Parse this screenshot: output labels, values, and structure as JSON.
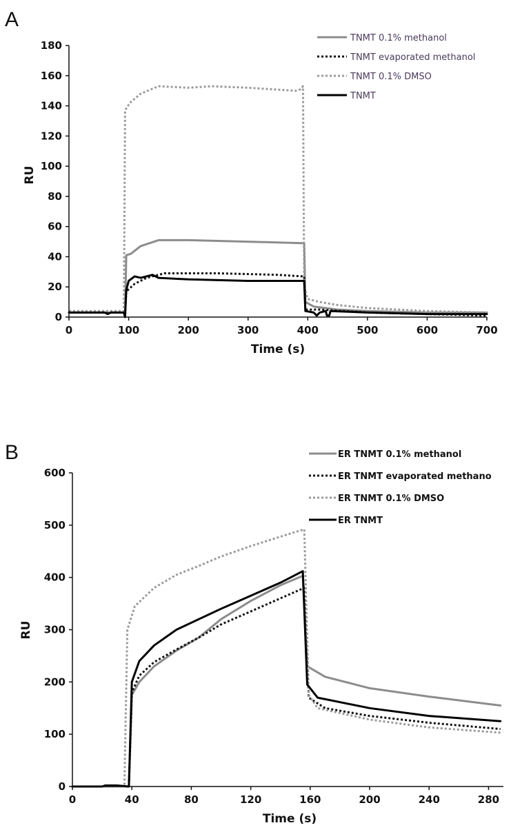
{
  "chart_data": [
    {
      "panel": "A",
      "type": "line",
      "xlabel": "Time (s)",
      "ylabel": "RU",
      "xlim": [
        0,
        700
      ],
      "ylim": [
        0,
        180
      ],
      "xticks": [
        "0",
        "100",
        "200",
        "300",
        "400",
        "500",
        "600",
        "700"
      ],
      "yticks": [
        "0",
        "20",
        "40",
        "60",
        "80",
        "100",
        "120",
        "140",
        "160",
        "180"
      ],
      "grid": false,
      "legend_position": "top-right",
      "series": [
        {
          "name": "TNMT 0.1% methanol",
          "color": "#8c8c8c",
          "dash": "solid",
          "points": [
            [
              0,
              3
            ],
            [
              94,
              3
            ],
            [
              96,
              41
            ],
            [
              104,
              42
            ],
            [
              120,
              47
            ],
            [
              150,
              51
            ],
            [
              200,
              51
            ],
            [
              300,
              50
            ],
            [
              390,
              49
            ],
            [
              394,
              49
            ],
            [
              396,
              10
            ],
            [
              410,
              7
            ],
            [
              450,
              5
            ],
            [
              500,
              4
            ],
            [
              600,
              3
            ],
            [
              700,
              3
            ]
          ]
        },
        {
          "name": "TNMT evaporated methanol",
          "color": "#111111",
          "dash": "dotted",
          "points": [
            [
              0,
              3
            ],
            [
              94,
              3
            ],
            [
              96,
              17
            ],
            [
              110,
              22
            ],
            [
              130,
              26
            ],
            [
              160,
              29
            ],
            [
              250,
              29
            ],
            [
              350,
              28
            ],
            [
              390,
              27
            ],
            [
              394,
              27
            ],
            [
              396,
              5
            ],
            [
              420,
              5
            ],
            [
              500,
              3
            ],
            [
              600,
              2
            ],
            [
              700,
              1
            ]
          ]
        },
        {
          "name": "TNMT 0.1% DMSO",
          "color": "#9a9a9a",
          "dash": "dotted",
          "points": [
            [
              0,
              4
            ],
            [
              92,
              4
            ],
            [
              94,
              137
            ],
            [
              102,
              142
            ],
            [
              120,
              148
            ],
            [
              150,
              153
            ],
            [
              200,
              152
            ],
            [
              240,
              153
            ],
            [
              300,
              152
            ],
            [
              340,
              151
            ],
            [
              380,
              150
            ],
            [
              388,
              151
            ],
            [
              392,
              153
            ],
            [
              394,
              20
            ],
            [
              400,
              12
            ],
            [
              420,
              10
            ],
            [
              450,
              8
            ],
            [
              500,
              6
            ],
            [
              600,
              4
            ],
            [
              700,
              3
            ]
          ]
        },
        {
          "name": "TNMT",
          "color": "#000000",
          "dash": "solid",
          "points": [
            [
              0,
              3
            ],
            [
              60,
              3
            ],
            [
              65,
              2
            ],
            [
              70,
              3
            ],
            [
              92,
              3
            ],
            [
              94,
              0
            ],
            [
              96,
              18
            ],
            [
              100,
              24
            ],
            [
              110,
              27
            ],
            [
              120,
              26
            ],
            [
              130,
              27
            ],
            [
              140,
              28
            ],
            [
              150,
              26
            ],
            [
              200,
              25
            ],
            [
              300,
              24
            ],
            [
              390,
              24
            ],
            [
              394,
              24
            ],
            [
              396,
              4
            ],
            [
              410,
              3
            ],
            [
              415,
              1
            ],
            [
              420,
              3
            ],
            [
              430,
              4
            ],
            [
              432,
              1
            ],
            [
              436,
              1
            ],
            [
              438,
              4
            ],
            [
              500,
              3
            ],
            [
              600,
              2
            ],
            [
              700,
              2
            ]
          ]
        }
      ]
    },
    {
      "panel": "B",
      "type": "line",
      "xlabel": "Time (s)",
      "ylabel": "RU",
      "xlim": [
        0,
        290
      ],
      "ylim": [
        0,
        600
      ],
      "xticks": [
        "0",
        "40",
        "80",
        "120",
        "160",
        "200",
        "240",
        "280"
      ],
      "yticks": [
        "0",
        "100",
        "200",
        "300",
        "400",
        "500",
        "600"
      ],
      "grid": false,
      "legend_position": "top-right",
      "series": [
        {
          "name": "ER TNMT 0.1% methanol",
          "color": "#8c8c8c",
          "dash": "solid",
          "points": [
            [
              0,
              0
            ],
            [
              38,
              0
            ],
            [
              40,
              175
            ],
            [
              45,
              200
            ],
            [
              55,
              230
            ],
            [
              70,
              260
            ],
            [
              85,
              285
            ],
            [
              100,
              320
            ],
            [
              120,
              355
            ],
            [
              140,
              385
            ],
            [
              155,
              403
            ],
            [
              158,
              230
            ],
            [
              170,
              210
            ],
            [
              200,
              188
            ],
            [
              240,
              172
            ],
            [
              288,
              155
            ]
          ]
        },
        {
          "name": "ER TNMT evaporated methano",
          "color": "#111111",
          "dash": "dotted",
          "points": [
            [
              0,
              0
            ],
            [
              38,
              0
            ],
            [
              40,
              180
            ],
            [
              45,
              212
            ],
            [
              55,
              238
            ],
            [
              70,
              262
            ],
            [
              85,
              285
            ],
            [
              100,
              310
            ],
            [
              120,
              335
            ],
            [
              140,
              360
            ],
            [
              156,
              380
            ],
            [
              159,
              170
            ],
            [
              170,
              150
            ],
            [
              200,
              135
            ],
            [
              240,
              122
            ],
            [
              288,
              110
            ]
          ]
        },
        {
          "name": "ER TNMT 0.1% DMSO",
          "color": "#9a9a9a",
          "dash": "dotted",
          "points": [
            [
              0,
              0
            ],
            [
              35,
              0
            ],
            [
              37,
              300
            ],
            [
              42,
              345
            ],
            [
              55,
              380
            ],
            [
              70,
              405
            ],
            [
              85,
              422
            ],
            [
              100,
              440
            ],
            [
              120,
              460
            ],
            [
              140,
              478
            ],
            [
              156,
              492
            ],
            [
              159,
              175
            ],
            [
              165,
              150
            ],
            [
              200,
              128
            ],
            [
              240,
              113
            ],
            [
              288,
              103
            ]
          ]
        },
        {
          "name": "ER TNMT",
          "color": "#000000",
          "dash": "solid",
          "points": [
            [
              0,
              0
            ],
            [
              20,
              0
            ],
            [
              22,
              2
            ],
            [
              30,
              2
            ],
            [
              38,
              0
            ],
            [
              40,
              200
            ],
            [
              45,
              240
            ],
            [
              55,
              270
            ],
            [
              70,
              300
            ],
            [
              85,
              320
            ],
            [
              100,
              340
            ],
            [
              120,
              365
            ],
            [
              140,
              390
            ],
            [
              155,
              412
            ],
            [
              158,
              195
            ],
            [
              165,
              170
            ],
            [
              200,
              150
            ],
            [
              240,
              135
            ],
            [
              288,
              125
            ]
          ]
        }
      ]
    }
  ]
}
